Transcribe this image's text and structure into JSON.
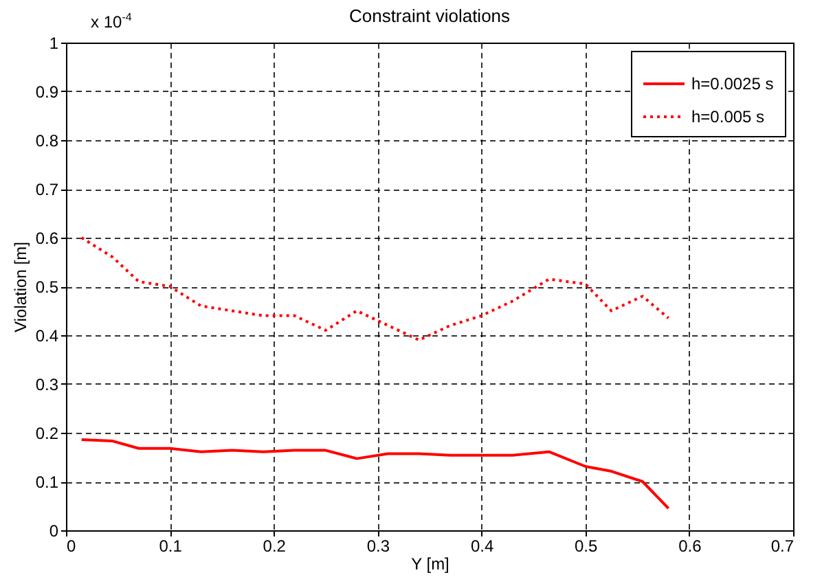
{
  "chart_data": {
    "type": "line",
    "title": "Constraint violations",
    "xlabel": "Y [m]",
    "ylabel": "Violation [m]",
    "annotations": [
      "x 10$^{-4}$"
    ],
    "xlim": [
      0,
      0.7
    ],
    "xticks": [
      0,
      0.1,
      0.2,
      0.3,
      0.4,
      0.5,
      0.6,
      0.7
    ],
    "ylim": [
      0,
      1
    ],
    "yticks": [
      0,
      0.1,
      0.2,
      0.3,
      0.4,
      0.5,
      0.6,
      0.7,
      0.8,
      0.9,
      1
    ],
    "grid": true,
    "legend": "top right",
    "x": [
      0.015,
      0.045,
      0.07,
      0.1,
      0.13,
      0.16,
      0.19,
      0.22,
      0.25,
      0.28,
      0.31,
      0.34,
      0.37,
      0.4,
      0.43,
      0.465,
      0.5,
      0.525,
      0.555,
      0.58
    ],
    "series": [
      {
        "name": "h=0.0025 s",
        "color": "#ff0000",
        "line_style": "solid",
        "values": [
          0.186,
          0.183,
          0.168,
          0.168,
          0.161,
          0.164,
          0.161,
          0.164,
          0.164,
          0.147,
          0.157,
          0.157,
          0.154,
          0.154,
          0.154,
          0.161,
          0.131,
          0.121,
          0.1,
          0.045
        ]
      },
      {
        "name": "h=0.005 s",
        "color": "#ff0000",
        "line_style": "dotted",
        "values": [
          0.6,
          0.56,
          0.51,
          0.5,
          0.46,
          0.45,
          0.44,
          0.44,
          0.41,
          0.45,
          0.42,
          0.39,
          0.42,
          0.44,
          0.47,
          0.515,
          0.505,
          0.45,
          0.48,
          0.435
        ]
      }
    ]
  }
}
